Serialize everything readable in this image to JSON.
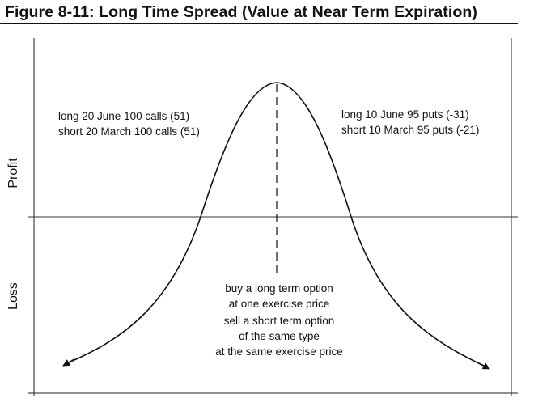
{
  "figure": {
    "title": "Figure 8-11: Long Time Spread (Value at Near Term Expiration)"
  },
  "axes": {
    "y_upper_label": "Profit",
    "y_lower_label": "Loss"
  },
  "annotations": {
    "left_positions": [
      "long 20 June 100 calls (51)",
      "short 20 March 100 calls (51)"
    ],
    "right_positions": [
      "long 10 June 95 puts (-31)",
      "short 10 March 95 puts (-21)"
    ],
    "strategy_step_1": [
      "buy a long term option",
      "at one exercise price"
    ],
    "strategy_step_2": [
      "sell a short term option",
      "of the same type",
      "at the same exercise price"
    ]
  }
}
